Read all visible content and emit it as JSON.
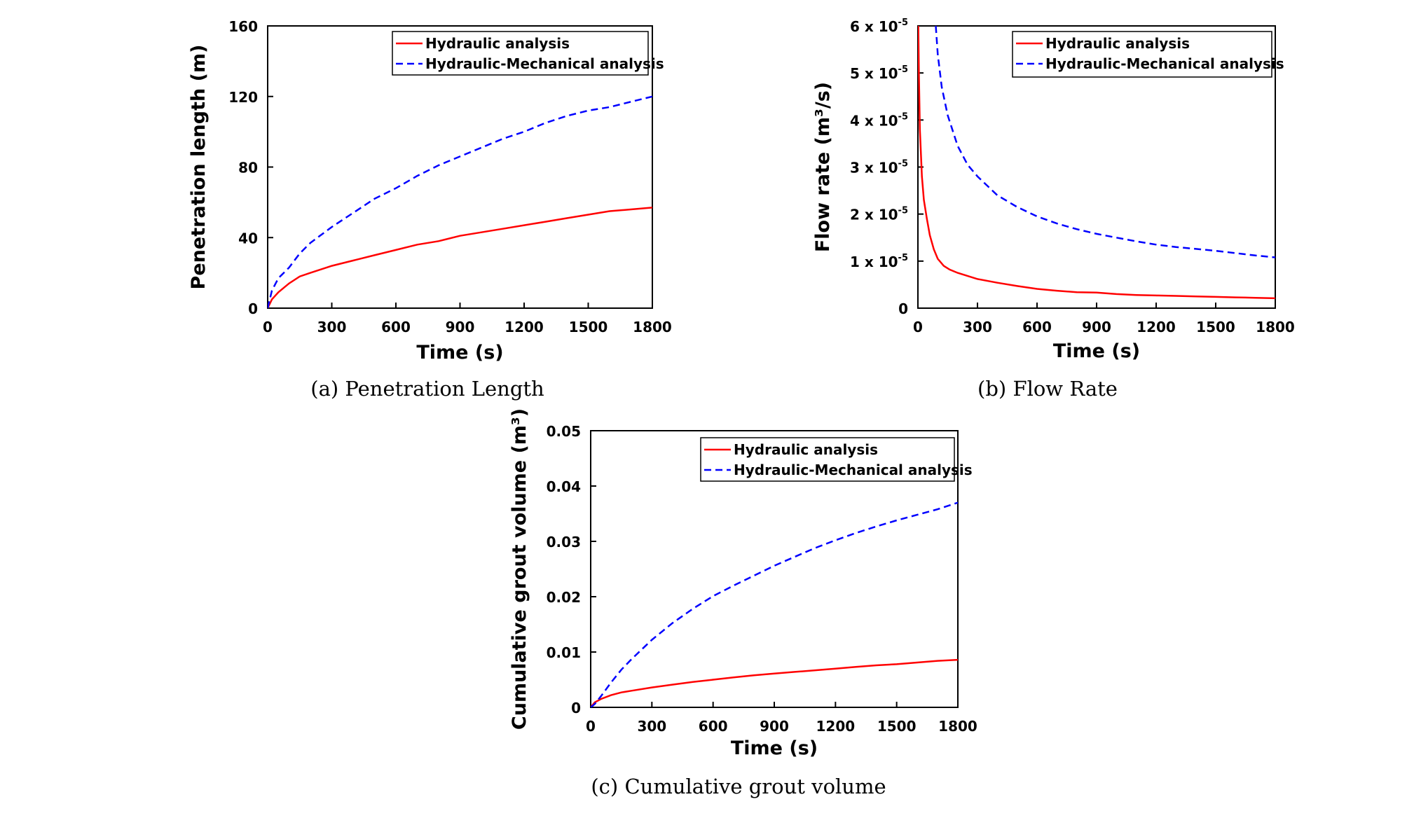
{
  "chart_data": [
    {
      "type": "line",
      "caption": "(a)  Penetration  Length",
      "xlabel": "Time (s)",
      "ylabel": "Penetration length (m)",
      "xlim": [
        0,
        1800
      ],
      "ylim": [
        0,
        160
      ],
      "xticks": [
        "0",
        "300",
        "600",
        "900",
        "1200",
        "1500",
        "1800"
      ],
      "yticks": [
        "0",
        "40",
        "80",
        "120",
        "160"
      ],
      "legend_position": "top-right",
      "series": [
        {
          "name": "Hydraulic analysis",
          "color": "#ff0000",
          "style": "solid",
          "x": [
            0,
            20,
            50,
            100,
            150,
            200,
            300,
            400,
            500,
            600,
            700,
            800,
            900,
            1000,
            1100,
            1200,
            1300,
            1400,
            1500,
            1600,
            1700,
            1800
          ],
          "y": [
            0,
            5,
            9,
            14,
            18,
            20,
            24,
            27,
            30,
            33,
            36,
            38,
            41,
            43,
            45,
            47,
            49,
            51,
            53,
            55,
            56,
            57
          ]
        },
        {
          "name": "Hydraulic-Mechanical analysis",
          "color": "#0000ff",
          "style": "dashed",
          "x": [
            0,
            20,
            50,
            100,
            150,
            200,
            300,
            400,
            500,
            600,
            700,
            800,
            900,
            1000,
            1100,
            1200,
            1300,
            1400,
            1500,
            1600,
            1700,
            1800
          ],
          "y": [
            0,
            10,
            17,
            23,
            31,
            37,
            46,
            54,
            62,
            68,
            75,
            81,
            86,
            91,
            96,
            100,
            105,
            109,
            112,
            114,
            117,
            120
          ]
        }
      ]
    },
    {
      "type": "line",
      "caption": "(b)  Flow  Rate",
      "xlabel": "Time (s)",
      "ylabel": "Flow rate (m³/s)",
      "xlim": [
        0,
        1800
      ],
      "ylim": [
        0,
        6e-05
      ],
      "xticks": [
        "0",
        "300",
        "600",
        "900",
        "1200",
        "1500",
        "1800"
      ],
      "yticks": [
        {
          "base": "0",
          "exp": ""
        },
        {
          "base": "1 x 10",
          "exp": "-5"
        },
        {
          "base": "2 x 10",
          "exp": "-5"
        },
        {
          "base": "3 x 10",
          "exp": "-5"
        },
        {
          "base": "4 x 10",
          "exp": "-5"
        },
        {
          "base": "5 x 10",
          "exp": "-5"
        },
        {
          "base": "6 x 10",
          "exp": "-5"
        }
      ],
      "legend_position": "top-right",
      "series": [
        {
          "name": "Hydraulic analysis",
          "color": "#ff0000",
          "style": "solid",
          "x": [
            2,
            5,
            10,
            20,
            30,
            45,
            60,
            80,
            100,
            130,
            160,
            200,
            300,
            400,
            500,
            600,
            700,
            800,
            900,
            1000,
            1100,
            1200,
            1300,
            1400,
            1500,
            1600,
            1700,
            1800
          ],
          "y": [
            6e-05,
            5e-05,
            3.8e-05,
            2.8e-05,
            2.3e-05,
            1.9e-05,
            1.55e-05,
            1.25e-05,
            1.05e-05,
            9e-06,
            8.2e-06,
            7.5e-06,
            6.2e-06,
            5.4e-06,
            4.7e-06,
            4.1e-06,
            3.7e-06,
            3.4e-06,
            3.3e-06,
            3e-06,
            2.8e-06,
            2.7e-06,
            2.6e-06,
            2.5e-06,
            2.4e-06,
            2.3e-06,
            2.2e-06,
            2.1e-06
          ]
        },
        {
          "name": "Hydraulic-Mechanical analysis",
          "color": "#0000ff",
          "style": "dashed",
          "x": [
            90,
            100,
            120,
            150,
            200,
            250,
            300,
            400,
            500,
            600,
            700,
            800,
            900,
            1000,
            1100,
            1200,
            1300,
            1400,
            1500,
            1600,
            1700,
            1800
          ],
          "y": [
            6e-05,
            5.4e-05,
            4.7e-05,
            4.1e-05,
            3.45e-05,
            3.05e-05,
            2.8e-05,
            2.4e-05,
            2.15e-05,
            1.95e-05,
            1.8e-05,
            1.68e-05,
            1.58e-05,
            1.5e-05,
            1.42e-05,
            1.35e-05,
            1.3e-05,
            1.26e-05,
            1.22e-05,
            1.17e-05,
            1.12e-05,
            1.08e-05
          ]
        }
      ]
    },
    {
      "type": "line",
      "caption": "(c)  Cumulative  grout  volume",
      "xlabel": "Time (s)",
      "ylabel": "Cumulative grout volume (m³)",
      "xlim": [
        0,
        1800
      ],
      "ylim": [
        0,
        0.05
      ],
      "xticks": [
        "0",
        "300",
        "600",
        "900",
        "1200",
        "1500",
        "1800"
      ],
      "yticks": [
        "0",
        "0.01",
        "0.02",
        "0.03",
        "0.04",
        "0.05"
      ],
      "legend_position": "top-right",
      "series": [
        {
          "name": "Hydraulic analysis",
          "color": "#ff0000",
          "style": "solid",
          "x": [
            0,
            20,
            50,
            100,
            150,
            200,
            300,
            400,
            500,
            600,
            700,
            800,
            900,
            1000,
            1100,
            1200,
            1300,
            1400,
            1500,
            1600,
            1700,
            1800
          ],
          "y": [
            0,
            0.0009,
            0.0015,
            0.0022,
            0.0027,
            0.003,
            0.0036,
            0.0041,
            0.0046,
            0.005,
            0.0054,
            0.0058,
            0.0061,
            0.0064,
            0.0067,
            0.007,
            0.0073,
            0.0076,
            0.0078,
            0.0081,
            0.0084,
            0.0086
          ]
        },
        {
          "name": "Hydraulic-Mechanical analysis",
          "color": "#0000ff",
          "style": "dashed",
          "x": [
            0,
            20,
            50,
            100,
            150,
            200,
            300,
            400,
            500,
            600,
            700,
            800,
            900,
            1000,
            1100,
            1200,
            1300,
            1400,
            1500,
            1600,
            1700,
            1800
          ],
          "y": [
            0,
            0.0006,
            0.002,
            0.0045,
            0.0068,
            0.0087,
            0.0122,
            0.0152,
            0.0178,
            0.0201,
            0.022,
            0.0238,
            0.0256,
            0.0272,
            0.0288,
            0.0302,
            0.0315,
            0.0327,
            0.0338,
            0.0348,
            0.0358,
            0.037
          ]
        }
      ]
    }
  ]
}
